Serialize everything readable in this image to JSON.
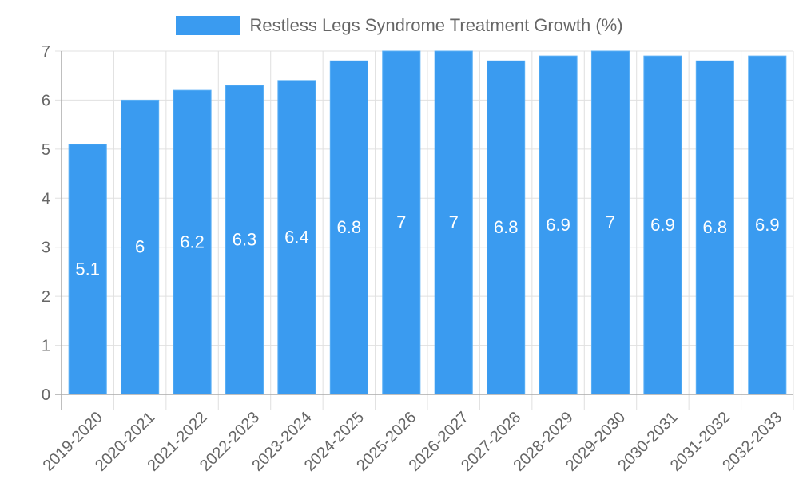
{
  "chart_data": {
    "type": "bar",
    "title": "",
    "legend": [
      {
        "label": "Restless Legs Syndrome Treatment Growth (%)",
        "color": "#3a9bf0"
      }
    ],
    "legend_position": "top",
    "categories": [
      "2019-2020",
      "2020-2021",
      "2021-2022",
      "2022-2023",
      "2023-2024",
      "2024-2025",
      "2025-2026",
      "2026-2027",
      "2027-2028",
      "2028-2029",
      "2029-2030",
      "2030-2031",
      "2031-2032",
      "2032-2033"
    ],
    "series": [
      {
        "name": "Restless Legs Syndrome Treatment Growth (%)",
        "values": [
          5.1,
          6,
          6.2,
          6.3,
          6.4,
          6.8,
          7,
          7,
          6.8,
          6.9,
          7,
          6.9,
          6.8,
          6.9
        ],
        "color": "#3a9bf0"
      }
    ],
    "data_labels": [
      "5.1",
      "6",
      "6.2",
      "6.3",
      "6.4",
      "6.8",
      "7",
      "7",
      "6.8",
      "6.9",
      "7",
      "6.9",
      "6.8",
      "6.9"
    ],
    "xlabel": "",
    "ylabel": "",
    "ylim": [
      0,
      7
    ],
    "yticks": [
      0,
      1,
      2,
      3,
      4,
      5,
      6,
      7
    ],
    "grid": true,
    "x_tick_rotation": -45
  },
  "legend": {
    "label": "Restless Legs Syndrome Treatment Growth (%)"
  }
}
